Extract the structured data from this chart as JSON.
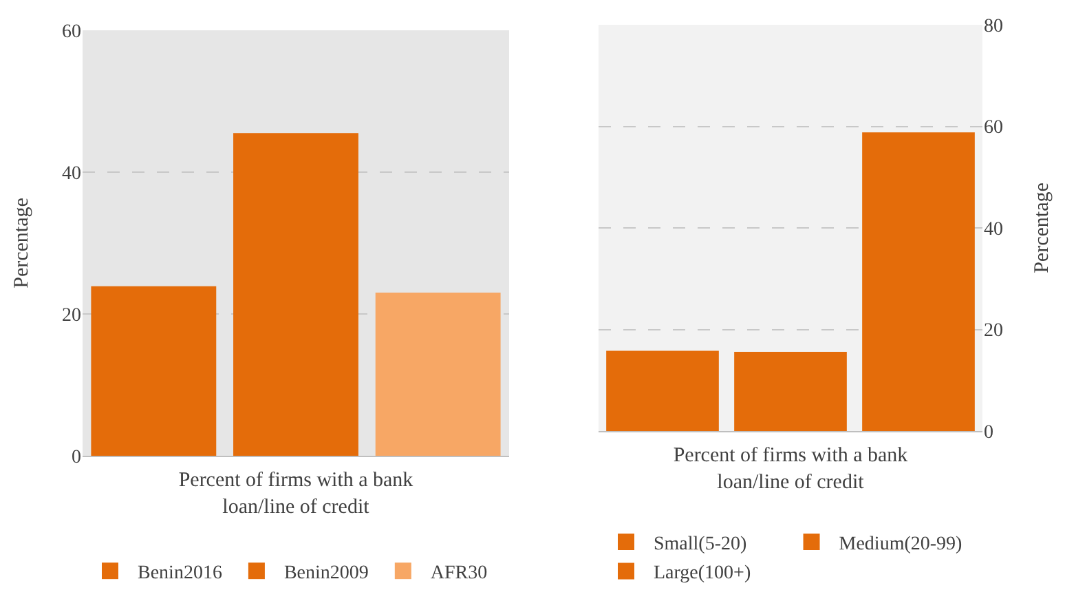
{
  "chart_data": [
    {
      "type": "bar",
      "xlabel": "Percent of firms with a bank loan/line of credit",
      "ylabel": "Percentage",
      "categories": [
        null,
        null,
        null
      ],
      "ylim": [
        0,
        60
      ],
      "yticks": [
        0,
        20,
        40,
        60
      ],
      "grid": "y",
      "legend": "bottom",
      "series": [
        {
          "name": "Benin2016",
          "color": "#e46c0a",
          "values": [
            23.9,
            null,
            null
          ]
        },
        {
          "name": "Benin2009",
          "color": "#e46c0a",
          "values": [
            null,
            45.5,
            null
          ]
        },
        {
          "name": "AFR30",
          "color": "#f7a765",
          "values": [
            null,
            null,
            23.0
          ]
        }
      ]
    },
    {
      "type": "bar",
      "xlabel": "Percent of firms with a bank loan/line of credit",
      "ylabel": "Percentage",
      "categories": [
        null,
        null,
        null
      ],
      "ylim": [
        0,
        80
      ],
      "yticks": [
        0,
        20,
        40,
        60,
        80
      ],
      "grid": "y",
      "legend": "bottom",
      "series": [
        {
          "name": "Small(5-20)",
          "color": "#e46c0a",
          "values": [
            15.8,
            null,
            null
          ]
        },
        {
          "name": "Medium(20-99)",
          "color": "#e46c0a",
          "values": [
            null,
            15.6,
            null
          ]
        },
        {
          "name": "Large(100+)",
          "color": "#e46c0a",
          "values": [
            null,
            null,
            58.8
          ]
        }
      ]
    }
  ]
}
